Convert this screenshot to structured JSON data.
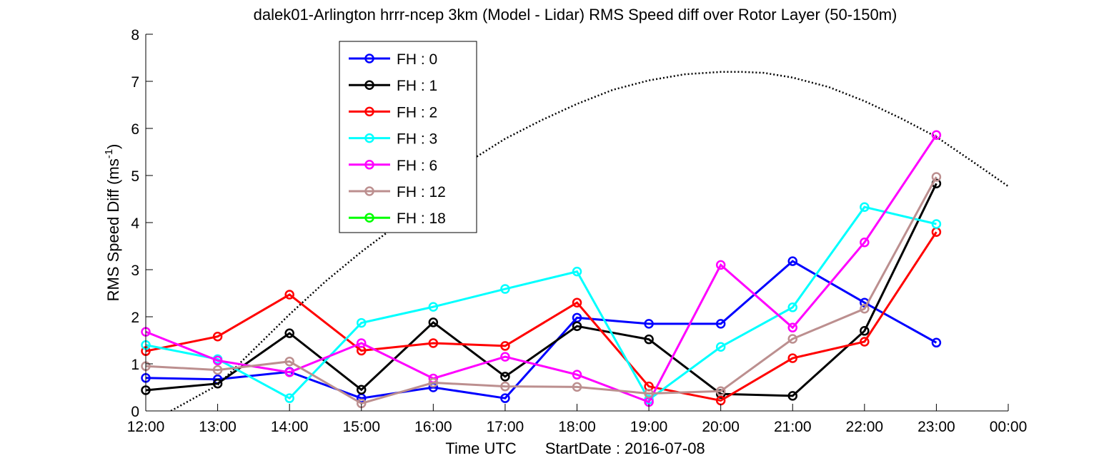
{
  "chart_data": {
    "type": "line",
    "title": "dalek01-Arlington hrrr-ncep 3km (Model - Lidar) RMS Speed diff over Rotor Layer (50-150m)",
    "xlabel_main": "Time UTC",
    "xlabel_startdate": "StartDate : 2016-07-08",
    "ylabel_main": "RMS Speed Diff (ms",
    "ylabel_sup": "-1",
    "ylabel_close": ")",
    "x_tick_labels": [
      "12:00",
      "13:00",
      "14:00",
      "15:00",
      "16:00",
      "17:00",
      "18:00",
      "19:00",
      "20:00",
      "21:00",
      "22:00",
      "23:00",
      "00:00"
    ],
    "y_ticks": [
      0,
      1,
      2,
      3,
      4,
      5,
      6,
      7,
      8
    ],
    "xlim": [
      12,
      24
    ],
    "ylim": [
      0,
      8
    ],
    "grid": false,
    "legend_position": "upper-left-inside",
    "series": [
      {
        "name": "FH : 0",
        "color": "#0000ff",
        "x": [
          12,
          13,
          14,
          15,
          16,
          17,
          18,
          19,
          20,
          21,
          22,
          23
        ],
        "y": [
          0.7,
          0.67,
          0.83,
          0.27,
          0.5,
          0.27,
          1.98,
          1.85,
          1.85,
          3.18,
          2.3,
          1.45
        ]
      },
      {
        "name": "FH : 1",
        "color": "#000000",
        "x": [
          12,
          13,
          14,
          15,
          16,
          17,
          18,
          19,
          20,
          21,
          22,
          23
        ],
        "y": [
          0.44,
          0.58,
          1.65,
          0.45,
          1.88,
          0.73,
          1.8,
          1.52,
          0.36,
          0.32,
          1.7,
          4.83
        ]
      },
      {
        "name": "FH : 2",
        "color": "#ff0000",
        "x": [
          12,
          13,
          14,
          15,
          16,
          17,
          18,
          19,
          20,
          21,
          22,
          23
        ],
        "y": [
          1.27,
          1.58,
          2.47,
          1.28,
          1.44,
          1.38,
          2.3,
          0.52,
          0.22,
          1.12,
          1.47,
          3.8
        ]
      },
      {
        "name": "FH : 3",
        "color": "#00ffff",
        "x": [
          12,
          13,
          14,
          15,
          16,
          17,
          18,
          19,
          20,
          21,
          22,
          23
        ],
        "y": [
          1.4,
          1.1,
          0.27,
          1.87,
          2.21,
          2.59,
          2.96,
          0.24,
          1.36,
          2.2,
          4.33,
          3.97
        ]
      },
      {
        "name": "FH : 6",
        "color": "#ff00ff",
        "x": [
          12,
          13,
          14,
          15,
          16,
          17,
          18,
          19,
          20,
          21,
          22,
          23
        ],
        "y": [
          1.68,
          1.07,
          0.82,
          1.44,
          0.69,
          1.15,
          0.77,
          0.19,
          3.1,
          1.77,
          3.58,
          5.86
        ]
      },
      {
        "name": "FH : 12",
        "color": "#bc8f8f",
        "x": [
          12,
          13,
          14,
          15,
          16,
          17,
          18,
          19,
          20,
          21,
          22,
          23
        ],
        "y": [
          0.95,
          0.87,
          1.05,
          0.16,
          0.6,
          0.52,
          0.51,
          0.37,
          0.42,
          1.53,
          2.17,
          4.97
        ]
      },
      {
        "name": "FH : 18",
        "color": "#00ff00",
        "x": [],
        "y": []
      }
    ],
    "reference_curve": {
      "color": "#000000",
      "style": "dotted",
      "x": [
        12.35,
        13,
        13.5,
        14,
        14.5,
        15,
        15.5,
        16,
        16.5,
        17,
        17.5,
        18,
        18.5,
        19,
        19.5,
        20,
        20.3,
        20.6,
        21,
        21.5,
        22,
        22.5,
        23,
        23.5,
        24
      ],
      "y": [
        0,
        0.55,
        1.3,
        2.05,
        2.75,
        3.38,
        3.95,
        4.78,
        5.3,
        5.78,
        6.17,
        6.52,
        6.82,
        7.02,
        7.15,
        7.2,
        7.2,
        7.18,
        7.08,
        6.88,
        6.58,
        6.22,
        5.82,
        5.3,
        4.77
      ]
    }
  }
}
